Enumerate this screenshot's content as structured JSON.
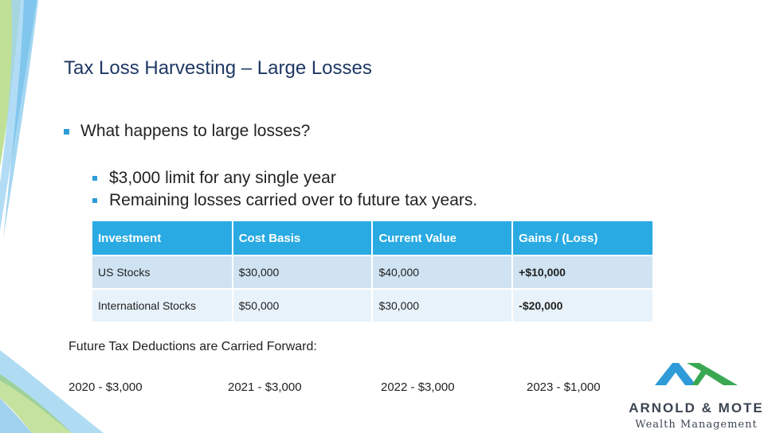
{
  "slide": {
    "title": "Tax Loss Harvesting – Large Losses",
    "bullets": [
      "What happens to large losses?",
      "$3,000 limit for any single year",
      "Remaining losses carried over to future tax years."
    ]
  },
  "table": {
    "headers": [
      "Investment",
      "Cost Basis",
      "Current Value",
      "Gains / (Loss)"
    ],
    "rows": [
      [
        "US Stocks",
        "$30,000",
        "$40,000",
        "+$10,000"
      ],
      [
        "International Stocks",
        "$50,000",
        "$30,000",
        "-$20,000"
      ]
    ]
  },
  "carry_forward": {
    "heading": "Future Tax Deductions are Carried Forward:",
    "items": [
      "2020 - $3,000",
      "2021 - $3,000",
      "2022 - $3,000",
      "2023 - $1,000"
    ]
  },
  "logo": {
    "name": "ARNOLD & MOTE",
    "tagline": "Wealth Management"
  },
  "colors": {
    "title": "#1f3864",
    "accent": "#29aae2",
    "gain": "#3aa853",
    "loss": "#e01e1e",
    "logo_blue": "#2e9bd8",
    "logo_green": "#3aa853"
  }
}
